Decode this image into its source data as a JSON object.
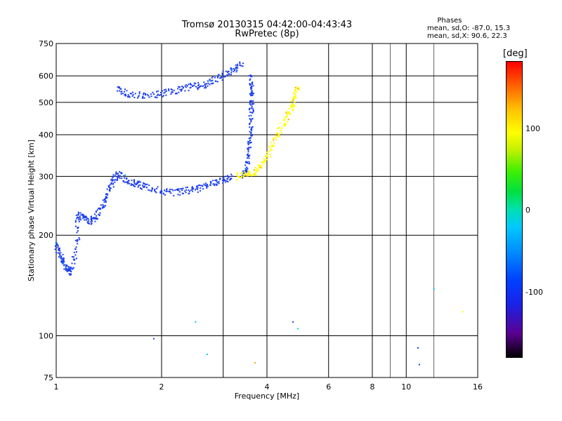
{
  "header": {
    "title_line1": "Tromsø 20130315 04:42:00-04:43:43",
    "title_line2": "RwPretec (8p)",
    "stats_heading": "Phases",
    "stats_o": "mean, sd,O: -87.0, 15.3",
    "stats_x": "mean, sd,X:  90.6, 22.3"
  },
  "colorbar": {
    "label": "[deg]",
    "ticks": [
      "100",
      "0",
      "-100"
    ],
    "range": [
      -180,
      180
    ]
  },
  "chart_data": {
    "type": "scatter",
    "title": "Tromsø 20130315 04:42:00-04:43:43",
    "subtitle": "RwPretec (8p)",
    "xlabel": "Frequency [MHz]",
    "ylabel": "Stationary phase Virtual Height [km]",
    "xscale": "log",
    "yscale": "log",
    "xlim": [
      1,
      16
    ],
    "ylim": [
      75,
      750
    ],
    "xticks": [
      "1",
      "2",
      "4",
      "6",
      "8",
      "10",
      "16"
    ],
    "yticks": [
      "75",
      "100",
      "200",
      "300",
      "400",
      "500",
      "600",
      "750"
    ],
    "grid": true,
    "color_meaning": "phase [deg]",
    "traces": [
      {
        "name_hint": "O-trace lower",
        "phase": -100,
        "points": [
          [
            1.0,
            190
          ],
          [
            1.02,
            175
          ],
          [
            1.05,
            165
          ],
          [
            1.08,
            158
          ],
          [
            1.1,
            155
          ],
          [
            1.15,
            185
          ],
          [
            1.15,
            230
          ],
          [
            1.2,
            225
          ],
          [
            1.25,
            220
          ],
          [
            1.3,
            228
          ],
          [
            1.35,
            240
          ],
          [
            1.4,
            265
          ],
          [
            1.45,
            290
          ],
          [
            1.5,
            305
          ],
          [
            1.6,
            290
          ],
          [
            1.7,
            285
          ],
          [
            1.8,
            280
          ],
          [
            2.0,
            270
          ],
          [
            2.2,
            268
          ],
          [
            2.4,
            272
          ],
          [
            2.6,
            278
          ],
          [
            2.8,
            285
          ],
          [
            3.0,
            292
          ],
          [
            3.2,
            300
          ]
        ]
      },
      {
        "name_hint": "O-trace upper",
        "phase": -100,
        "points": [
          [
            1.5,
            545
          ],
          [
            1.6,
            530
          ],
          [
            1.8,
            525
          ],
          [
            2.0,
            530
          ],
          [
            2.2,
            540
          ],
          [
            2.4,
            555
          ],
          [
            2.6,
            560
          ],
          [
            2.8,
            580
          ],
          [
            3.0,
            600
          ],
          [
            3.2,
            625
          ],
          [
            3.4,
            650
          ]
        ]
      },
      {
        "name_hint": "O-trace cusp",
        "phase": -100,
        "points": [
          [
            3.4,
            300
          ],
          [
            3.5,
            320
          ],
          [
            3.55,
            360
          ],
          [
            3.6,
            400
          ],
          [
            3.6,
            450
          ],
          [
            3.62,
            500
          ],
          [
            3.62,
            550
          ],
          [
            3.6,
            600
          ]
        ]
      },
      {
        "name_hint": "X-trace",
        "phase": 100,
        "points": [
          [
            3.3,
            300
          ],
          [
            3.5,
            305
          ],
          [
            3.7,
            310
          ],
          [
            3.9,
            330
          ],
          [
            4.1,
            360
          ],
          [
            4.3,
            400
          ],
          [
            4.5,
            440
          ],
          [
            4.7,
            480
          ],
          [
            4.8,
            520
          ],
          [
            4.9,
            560
          ]
        ]
      }
    ]
  }
}
